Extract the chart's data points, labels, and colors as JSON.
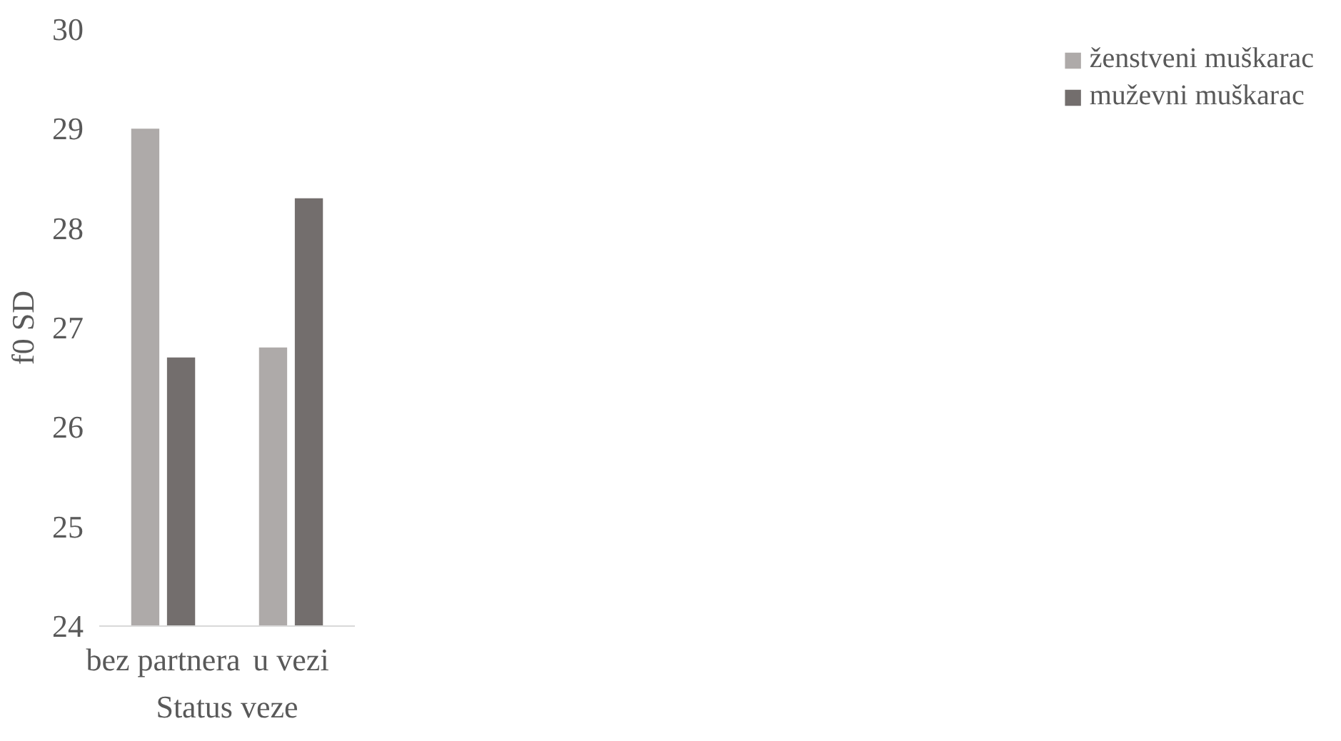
{
  "chart_data": {
    "type": "bar",
    "xlabel": "Status veze",
    "ylabel": "f0 SD",
    "categories": [
      "bez partnera",
      "u vezi"
    ],
    "series": [
      {
        "name": "ženstveni muškarac",
        "color": "#aeaaa9",
        "values": [
          29.0,
          26.8
        ]
      },
      {
        "name": "muževni muškarac",
        "color": "#736e6d",
        "values": [
          26.7,
          28.3
        ]
      }
    ],
    "ylim": [
      24,
      30
    ],
    "yticks": [
      24,
      25,
      26,
      27,
      28,
      29,
      30
    ],
    "grid": false,
    "legend": "right"
  }
}
